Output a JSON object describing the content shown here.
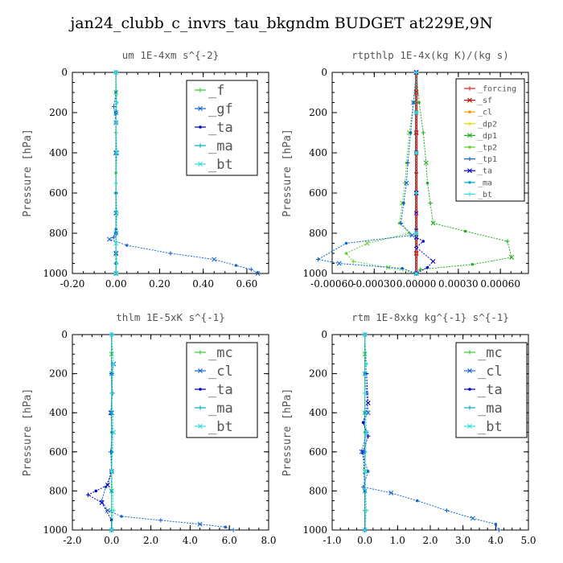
{
  "page_title": "jan24_clubb_c_invrs_tau_bkgndm  BUDGET at229E,9N",
  "chart_data": [
    {
      "type": "line",
      "title": "um   1E-4xm s^{-2}",
      "ylabel": "Pressure [hPa]",
      "xlim": [
        -0.2,
        0.7
      ],
      "ylim": [
        1000,
        0
      ],
      "xticks": [
        "-0.20",
        "0.00",
        "0.20",
        "0.40",
        "0.60"
      ],
      "xtick_values": [
        -0.2,
        0.0,
        0.2,
        0.4,
        0.6
      ],
      "yticks": [
        "0",
        "200",
        "400",
        "600",
        "800",
        "1000"
      ],
      "ytick_values": [
        0,
        200,
        400,
        600,
        800,
        1000
      ],
      "legend_position": "top-right",
      "legend_font": 17,
      "series": [
        {
          "name": "_f",
          "color": "#33cc33",
          "x": [
            0,
            0,
            0,
            0,
            0,
            0,
            0,
            0,
            0,
            0,
            0
          ],
          "y": [
            0,
            100,
            200,
            300,
            400,
            500,
            600,
            700,
            800,
            900,
            1000
          ]
        },
        {
          "name": "_gf",
          "color": "#1a66cc",
          "x": [
            0,
            0,
            -0.01,
            0,
            0,
            0,
            0,
            0,
            -0.01,
            -0.03,
            0.05,
            0.25,
            0.45,
            0.55,
            0.62,
            0.65
          ],
          "y": [
            0,
            100,
            170,
            250,
            400,
            600,
            700,
            780,
            820,
            830,
            860,
            900,
            930,
            960,
            980,
            1000
          ]
        },
        {
          "name": "_ta",
          "color": "#0000cc",
          "x": [
            0,
            0,
            0,
            0,
            0,
            0,
            0,
            0
          ],
          "y": [
            0,
            200,
            400,
            600,
            800,
            900,
            950,
            1000
          ]
        },
        {
          "name": "_ma",
          "color": "#00aacc",
          "x": [
            0,
            0,
            0,
            0,
            0,
            0,
            0,
            0
          ],
          "y": [
            0,
            200,
            400,
            600,
            800,
            900,
            950,
            1000
          ]
        },
        {
          "name": "_bt",
          "color": "#33dddd",
          "x": [
            0,
            0.005,
            0,
            0.005,
            0,
            0.005,
            0,
            0.005,
            0
          ],
          "y": [
            0,
            150,
            250,
            400,
            550,
            700,
            850,
            950,
            1000
          ]
        }
      ]
    },
    {
      "type": "line",
      "title": "rtpthlp   1E-4x(kg K)/(kg s)",
      "ylabel": "Pressure [hPa]",
      "xlim": [
        -0.0006,
        0.0008
      ],
      "ylim": [
        1000,
        0
      ],
      "xticks": [
        "-0.00060",
        "-0.00030",
        "0.00000",
        "0.00030",
        "0.00060"
      ],
      "xtick_values": [
        -0.0006,
        -0.0003,
        0.0,
        0.0003,
        0.0006
      ],
      "yticks": [
        "0",
        "200",
        "400",
        "600",
        "800",
        "1000"
      ],
      "ytick_values": [
        0,
        200,
        400,
        600,
        800,
        1000
      ],
      "legend_position": "top-right",
      "legend_font": 10,
      "series": [
        {
          "name": "_forcing",
          "color": "#dd2222",
          "x": [
            0,
            0,
            0,
            0,
            0,
            0,
            0,
            0,
            0,
            0,
            0
          ],
          "y": [
            0,
            100,
            200,
            300,
            400,
            500,
            600,
            700,
            800,
            900,
            1000
          ]
        },
        {
          "name": "_sf",
          "color": "#cc0000",
          "x": [
            0,
            0,
            0,
            0,
            0,
            0,
            0,
            0,
            0,
            0,
            0
          ],
          "y": [
            0,
            100,
            200,
            300,
            400,
            500,
            600,
            700,
            800,
            900,
            1000
          ]
        },
        {
          "name": "_cl",
          "color": "#ff9900",
          "x": [
            0,
            0,
            0,
            0,
            0,
            0
          ],
          "y": [
            0,
            200,
            400,
            600,
            800,
            1000
          ]
        },
        {
          "name": "_dp2",
          "color": "#dddd00",
          "x": [
            0,
            0,
            0,
            0,
            0,
            0
          ],
          "y": [
            0,
            200,
            400,
            600,
            800,
            1000
          ]
        },
        {
          "name": "_dp1",
          "color": "#22aa22",
          "x": [
            0,
            2e-05,
            5e-05,
            7e-05,
            8e-05,
            0.0001,
            0.00012,
            0.00035,
            0.00065,
            0.00068,
            0.0004,
            3e-05,
            0
          ],
          "y": [
            0,
            150,
            300,
            450,
            550,
            650,
            750,
            790,
            840,
            920,
            955,
            980,
            1000
          ]
        },
        {
          "name": "_tp2",
          "color": "#66cc33",
          "x": [
            0,
            -2e-05,
            -5e-05,
            -7e-05,
            -8e-05,
            -0.0001,
            -0.00012,
            -5e-05,
            -0.00035,
            -0.0005,
            -0.00045,
            -0.0002,
            0
          ],
          "y": [
            0,
            150,
            300,
            450,
            550,
            650,
            750,
            800,
            850,
            900,
            940,
            970,
            1000
          ]
        },
        {
          "name": "_tp1",
          "color": "#0066cc",
          "x": [
            0,
            -2e-05,
            -4e-05,
            -6e-05,
            -7e-05,
            -9e-05,
            -0.00011,
            -3e-05,
            -0.0005,
            -0.0007,
            -0.00055,
            -0.0001,
            0
          ],
          "y": [
            0,
            150,
            300,
            450,
            550,
            650,
            750,
            810,
            850,
            930,
            950,
            975,
            1000
          ]
        },
        {
          "name": "_ta",
          "color": "#0000cc",
          "x": [
            0,
            0,
            0,
            0,
            0,
            0,
            0,
            5e-05,
            0,
            0.00012,
            8e-05,
            0
          ],
          "y": [
            0,
            200,
            400,
            600,
            700,
            780,
            820,
            840,
            870,
            940,
            970,
            1000
          ]
        },
        {
          "name": "_ma",
          "color": "#00aacc",
          "x": [
            0,
            0,
            0,
            0,
            0,
            0
          ],
          "y": [
            0,
            200,
            400,
            600,
            800,
            1000
          ]
        },
        {
          "name": "_bt",
          "color": "#33dddd",
          "x": [
            0,
            0,
            0,
            0,
            0,
            0
          ],
          "y": [
            0,
            200,
            400,
            600,
            800,
            1000
          ]
        }
      ]
    },
    {
      "type": "line",
      "title": "thlm   1E-5xK s^{-1}",
      "ylabel": "Pressure [hPa]",
      "xlim": [
        -2.0,
        8.0
      ],
      "ylim": [
        1000,
        0
      ],
      "xticks": [
        "-2.0",
        "0.0",
        "2.0",
        "4.0",
        "6.0",
        "8.0"
      ],
      "xtick_values": [
        -2.0,
        0.0,
        2.0,
        4.0,
        6.0,
        8.0
      ],
      "yticks": [
        "0",
        "200",
        "400",
        "600",
        "800",
        "1000"
      ],
      "ytick_values": [
        0,
        200,
        400,
        600,
        800,
        1000
      ],
      "legend_position": "top-right",
      "legend_font": 17,
      "series": [
        {
          "name": "_mc",
          "color": "#33cc33",
          "x": [
            0,
            0,
            0,
            0,
            0,
            0,
            0,
            0,
            0,
            0,
            0
          ],
          "y": [
            0,
            100,
            200,
            300,
            400,
            500,
            600,
            700,
            800,
            900,
            1000
          ]
        },
        {
          "name": "_cl",
          "color": "#1a66cc",
          "x": [
            0.1,
            0,
            0.05,
            -0.05,
            0.05,
            -0.05,
            0,
            -0.3,
            -0.5,
            -0.2,
            0.5,
            2.5,
            4.5,
            5.8,
            6.2
          ],
          "y": [
            150,
            200,
            300,
            400,
            500,
            600,
            700,
            780,
            850,
            900,
            930,
            950,
            970,
            985,
            1000
          ]
        },
        {
          "name": "_ta",
          "color": "#0000cc",
          "x": [
            0,
            0,
            0,
            0,
            0,
            -0.2,
            -0.8,
            -1.2,
            -0.5,
            0,
            0
          ],
          "y": [
            0,
            200,
            400,
            600,
            700,
            770,
            800,
            820,
            860,
            950,
            1000
          ]
        },
        {
          "name": "_ma",
          "color": "#00aacc",
          "x": [
            0,
            0,
            0,
            0,
            0,
            0
          ],
          "y": [
            0,
            200,
            400,
            600,
            800,
            1000
          ]
        },
        {
          "name": "_bt",
          "color": "#33dddd",
          "x": [
            0,
            0.1,
            0,
            0.1,
            0,
            0.1,
            0
          ],
          "y": [
            0,
            150,
            300,
            500,
            700,
            900,
            1000
          ]
        }
      ]
    },
    {
      "type": "line",
      "title": "rtm   1E-8xkg kg^{-1} s^{-1}",
      "ylabel": "Pressure [hPa]",
      "xlim": [
        -1.0,
        5.0
      ],
      "ylim": [
        1000,
        0
      ],
      "xticks": [
        "-1.0",
        "0.0",
        "1.0",
        "2.0",
        "3.0",
        "4.0",
        "5.0"
      ],
      "xtick_values": [
        -1.0,
        0.0,
        1.0,
        2.0,
        3.0,
        4.0,
        5.0
      ],
      "yticks": [
        "0",
        "200",
        "400",
        "600",
        "800",
        "1000"
      ],
      "ytick_values": [
        0,
        200,
        400,
        600,
        800,
        1000
      ],
      "legend_position": "top-right",
      "legend_font": 17,
      "series": [
        {
          "name": "_mc",
          "color": "#33cc33",
          "x": [
            0,
            0,
            0,
            0,
            0,
            0,
            0,
            0,
            0,
            0,
            0
          ],
          "y": [
            0,
            100,
            200,
            300,
            400,
            500,
            600,
            700,
            800,
            900,
            1000
          ]
        },
        {
          "name": "_cl",
          "color": "#1a66cc",
          "x": [
            0,
            0,
            0.05,
            0.1,
            -0.05,
            0.05,
            -0.1,
            0.1,
            -0.05,
            0.8,
            1.6,
            2.5,
            3.3,
            4.0,
            4.1
          ],
          "y": [
            0,
            200,
            300,
            400,
            450,
            500,
            600,
            700,
            780,
            810,
            850,
            900,
            940,
            970,
            1000
          ]
        },
        {
          "name": "_ta",
          "color": "#0000cc",
          "x": [
            0,
            0.05,
            0.1,
            -0.05,
            0.1,
            -0.05,
            0,
            0
          ],
          "y": [
            0,
            200,
            350,
            450,
            520,
            600,
            800,
            1000
          ]
        },
        {
          "name": "_ma",
          "color": "#00aacc",
          "x": [
            0,
            0,
            0,
            0,
            0,
            0
          ],
          "y": [
            0,
            200,
            400,
            600,
            800,
            1000
          ]
        },
        {
          "name": "_bt",
          "color": "#33dddd",
          "x": [
            0,
            0.05,
            0,
            0.05,
            0,
            0.05,
            0
          ],
          "y": [
            0,
            150,
            300,
            500,
            700,
            900,
            1000
          ]
        }
      ]
    }
  ]
}
